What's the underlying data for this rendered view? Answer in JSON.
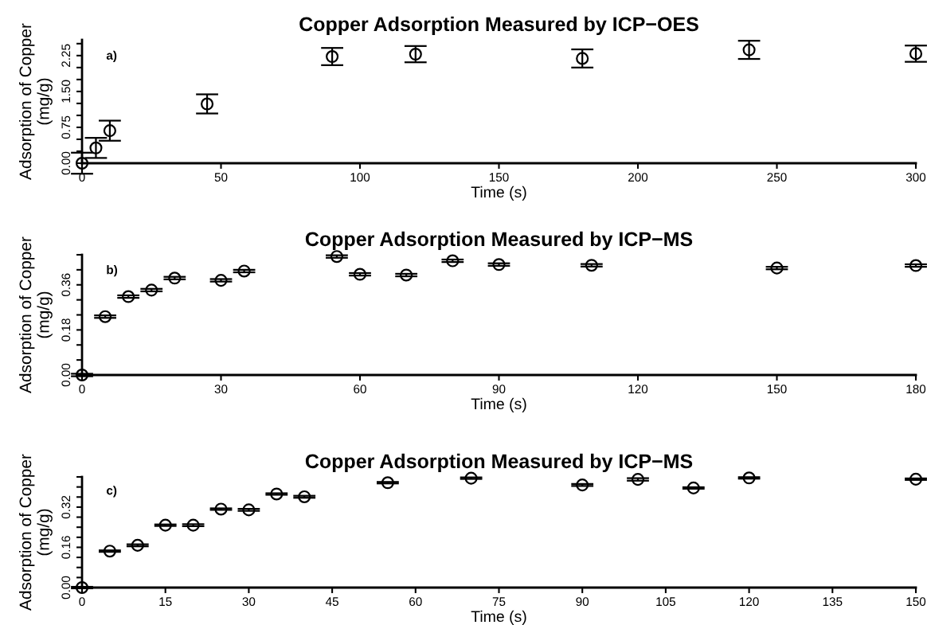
{
  "chart_data": [
    {
      "type": "scatter",
      "title": "Copper Adsorption Measured by ICP−OES",
      "xlabel": "Time (s)",
      "ylabel": "Adsorption of Copper\n(mg/g)",
      "annotations": [
        "a)"
      ],
      "marker": "circle",
      "grid": false,
      "color": "#000000",
      "x": [
        0,
        5,
        10,
        45,
        90,
        120,
        180,
        240,
        300
      ],
      "values": [
        0,
        0.32,
        0.68,
        1.24,
        2.23,
        2.28,
        2.19,
        2.37,
        2.29
      ],
      "errors": [
        0.22,
        0.21,
        0.21,
        0.2,
        0.18,
        0.17,
        0.19,
        0.19,
        0.17
      ],
      "xlim": [
        0,
        300
      ],
      "xticks": [
        0,
        50,
        100,
        150,
        200,
        250,
        300
      ],
      "ylim": [
        0,
        2.58
      ],
      "yticks": [
        {
          "value": 0,
          "label": "0.00"
        },
        {
          "value": 0.25,
          "label": null
        },
        {
          "value": 0.5,
          "label": null
        },
        {
          "value": 0.75,
          "label": "0.75"
        },
        {
          "value": 1.0,
          "label": null
        },
        {
          "value": 1.25,
          "label": null
        },
        {
          "value": 1.5,
          "label": "1.50"
        },
        {
          "value": 1.75,
          "label": null
        },
        {
          "value": 2.0,
          "label": null
        },
        {
          "value": 2.25,
          "label": "2.25"
        },
        {
          "value": 2.5,
          "label": null
        }
      ]
    },
    {
      "type": "scatter",
      "title": "Copper Adsorption Measured by ICP−MS",
      "xlabel": "Time (s)",
      "ylabel": "Adsorption of Copper\n(mg/g)",
      "annotations": [
        "b)"
      ],
      "marker": "circle",
      "grid": false,
      "color": "#000000",
      "x": [
        0,
        5,
        10,
        15,
        20,
        30,
        35,
        55,
        60,
        70,
        80,
        90,
        110,
        150,
        180
      ],
      "values": [
        0,
        0.233,
        0.313,
        0.339,
        0.387,
        0.378,
        0.415,
        0.473,
        0.402,
        0.399,
        0.456,
        0.441,
        0.438,
        0.427,
        0.437
      ],
      "errors": [
        0.005,
        0.005,
        0.005,
        0.005,
        0.005,
        0.005,
        0.005,
        0.005,
        0.005,
        0.005,
        0.005,
        0.005,
        0.005,
        0.005,
        0.005
      ],
      "xlim": [
        0,
        180
      ],
      "xticks": [
        0,
        30,
        60,
        90,
        120,
        150,
        180
      ],
      "ylim": [
        0,
        0.48
      ],
      "yticks": [
        {
          "value": 0,
          "label": "0.00"
        },
        {
          "value": 0.06,
          "label": null
        },
        {
          "value": 0.12,
          "label": null
        },
        {
          "value": 0.18,
          "label": "0.18"
        },
        {
          "value": 0.24,
          "label": null
        },
        {
          "value": 0.3,
          "label": null
        },
        {
          "value": 0.36,
          "label": "0.36"
        },
        {
          "value": 0.42,
          "label": null
        },
        {
          "value": 0.48,
          "label": null
        }
      ]
    },
    {
      "type": "scatter",
      "title": "Copper Adsorption Measured by ICP−MS",
      "xlabel": "Time (s)",
      "ylabel": "Adsorption of Copper\n(mg/g)",
      "annotations": [
        "c)"
      ],
      "marker": "circle",
      "grid": false,
      "color": "#000000",
      "x": [
        0,
        5,
        10,
        15,
        20,
        25,
        30,
        35,
        40,
        55,
        70,
        90,
        100,
        110,
        120,
        150
      ],
      "values": [
        0,
        0.145,
        0.168,
        0.248,
        0.248,
        0.312,
        0.309,
        0.372,
        0.361,
        0.417,
        0.435,
        0.408,
        0.43,
        0.396,
        0.436,
        0.431
      ],
      "errors": [
        0.003,
        0.003,
        0.004,
        0.003,
        0.004,
        0.003,
        0.004,
        0.003,
        0.004,
        0.003,
        0.003,
        0.004,
        0.005,
        0.003,
        0.003,
        0.003
      ],
      "xlim": [
        0,
        150
      ],
      "xticks": [
        0,
        15,
        30,
        45,
        60,
        75,
        90,
        105,
        120,
        135,
        150
      ],
      "ylim": [
        0,
        0.44
      ],
      "yticks": [
        {
          "value": 0,
          "label": "0.00"
        },
        {
          "value": 0.04,
          "label": null
        },
        {
          "value": 0.08,
          "label": null
        },
        {
          "value": 0.12,
          "label": null
        },
        {
          "value": 0.16,
          "label": "0.16"
        },
        {
          "value": 0.2,
          "label": null
        },
        {
          "value": 0.24,
          "label": null
        },
        {
          "value": 0.28,
          "label": null
        },
        {
          "value": 0.32,
          "label": "0.32"
        },
        {
          "value": 0.36,
          "label": null
        },
        {
          "value": 0.4,
          "label": null
        },
        {
          "value": 0.44,
          "label": null
        }
      ]
    }
  ]
}
